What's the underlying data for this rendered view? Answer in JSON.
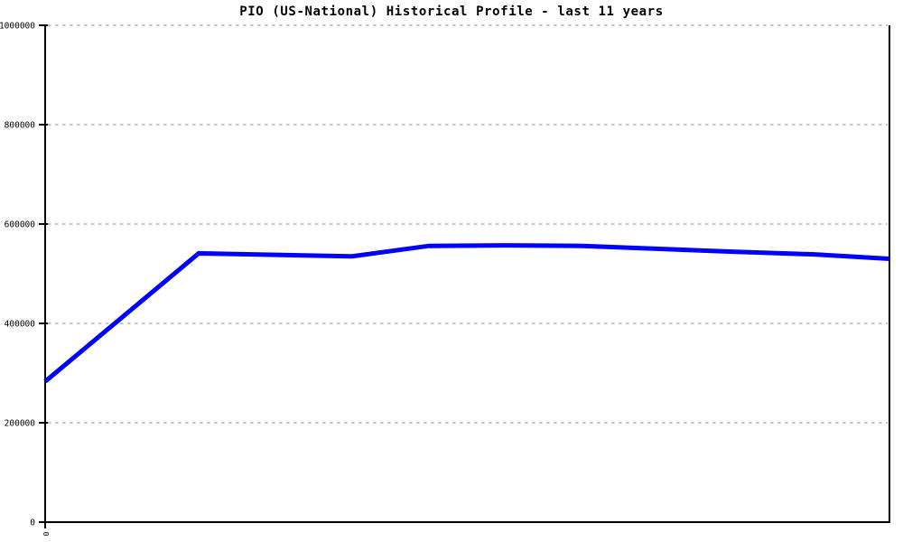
{
  "chart_data": {
    "type": "line",
    "title": "PIO (US-National) Historical Profile - last 11 years",
    "xlabel": "",
    "ylabel": "",
    "xlim": [
      0,
      11
    ],
    "ylim": [
      0,
      1000000
    ],
    "x": [
      0,
      1,
      2,
      3,
      4,
      5,
      6,
      7,
      8,
      9,
      10,
      11
    ],
    "series": [
      {
        "values": [
          283000,
          412000,
          541000,
          538000,
          535000,
          556000,
          557000,
          556000,
          550000,
          544000,
          539000,
          530000
        ]
      }
    ],
    "y_ticks": [
      {
        "value": 0,
        "label": "0"
      },
      {
        "value": 200000,
        "label": "200000"
      },
      {
        "value": 400000,
        "label": "400000"
      },
      {
        "value": 600000,
        "label": "600000"
      },
      {
        "value": 800000,
        "label": "800000"
      },
      {
        "value": 1000000,
        "label": "1000000"
      }
    ],
    "x_ticks": [
      {
        "value": 0,
        "label": "0"
      }
    ],
    "grid": "horizontal-dashed",
    "legend_position": "none",
    "colors": {
      "line": "#0000ff",
      "axis": "#000000",
      "gridline": "#b4b4b4",
      "background": "#ffffff",
      "text": "#000000"
    }
  }
}
